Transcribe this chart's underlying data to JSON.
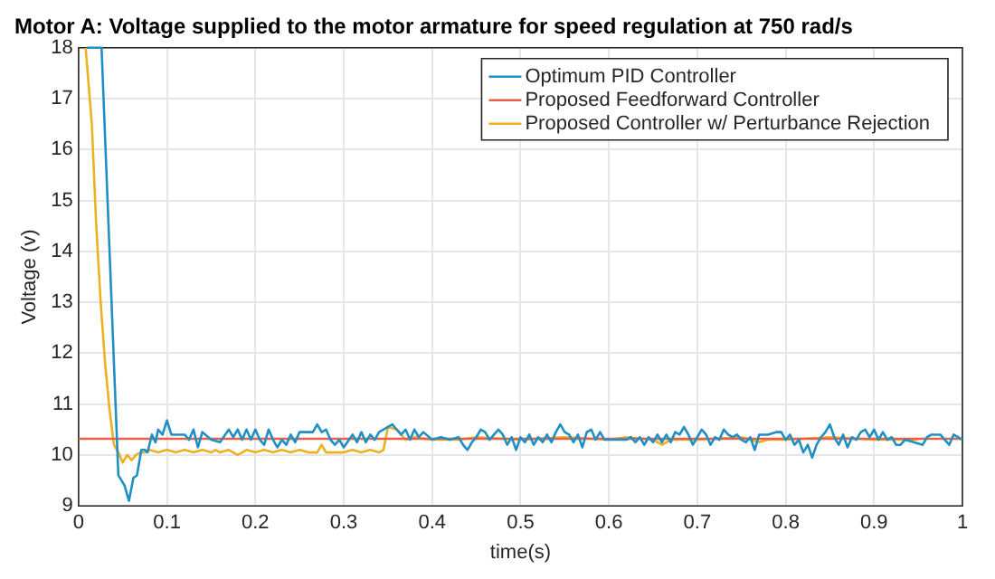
{
  "chart_data": {
    "type": "line",
    "title": "Motor A: Voltage supplied to the motor armature for speed regulation at 750 rad/s",
    "xlabel": "time(s)",
    "ylabel": "Voltage (v)",
    "xlim": [
      0,
      1
    ],
    "xticks": [
      0,
      0.1,
      0.2,
      0.3,
      0.4,
      0.5,
      0.6,
      0.7,
      0.8,
      0.9,
      1
    ],
    "ylim": [
      9,
      18
    ],
    "yticks": [
      9,
      10,
      11,
      12,
      13,
      14,
      15,
      16,
      17,
      18
    ],
    "grid": true,
    "legend": "top right",
    "marker": "none",
    "line_style": "solid",
    "series": [
      {
        "name": "Optimum PID Controller",
        "color": "#1f8fc4",
        "x": [
          0.01,
          0.026,
          0.045,
          0.052,
          0.057,
          0.062,
          0.066,
          0.071,
          0.075,
          0.078,
          0.083,
          0.087,
          0.09,
          0.095,
          0.1,
          0.105,
          0.12,
          0.125,
          0.13,
          0.135,
          0.14,
          0.15,
          0.16,
          0.17,
          0.175,
          0.18,
          0.185,
          0.19,
          0.195,
          0.2,
          0.205,
          0.21,
          0.215,
          0.22,
          0.225,
          0.23,
          0.235,
          0.24,
          0.245,
          0.25,
          0.265,
          0.27,
          0.275,
          0.28,
          0.285,
          0.29,
          0.295,
          0.3,
          0.31,
          0.315,
          0.32,
          0.325,
          0.33,
          0.335,
          0.34,
          0.35,
          0.355,
          0.36,
          0.365,
          0.37,
          0.375,
          0.38,
          0.385,
          0.39,
          0.4,
          0.41,
          0.42,
          0.43,
          0.435,
          0.44,
          0.445,
          0.45,
          0.455,
          0.46,
          0.465,
          0.47,
          0.475,
          0.48,
          0.485,
          0.49,
          0.495,
          0.5,
          0.505,
          0.51,
          0.515,
          0.52,
          0.525,
          0.53,
          0.535,
          0.54,
          0.545,
          0.55,
          0.555,
          0.56,
          0.565,
          0.57,
          0.575,
          0.58,
          0.585,
          0.59,
          0.595,
          0.62,
          0.625,
          0.63,
          0.635,
          0.64,
          0.645,
          0.65,
          0.655,
          0.66,
          0.665,
          0.67,
          0.675,
          0.68,
          0.685,
          0.69,
          0.695,
          0.7,
          0.705,
          0.71,
          0.715,
          0.72,
          0.725,
          0.73,
          0.735,
          0.74,
          0.745,
          0.75,
          0.755,
          0.76,
          0.765,
          0.77,
          0.78,
          0.79,
          0.795,
          0.8,
          0.805,
          0.81,
          0.815,
          0.82,
          0.825,
          0.83,
          0.835,
          0.84,
          0.845,
          0.85,
          0.855,
          0.86,
          0.865,
          0.87,
          0.875,
          0.88,
          0.885,
          0.89,
          0.895,
          0.9,
          0.905,
          0.91,
          0.915,
          0.92,
          0.925,
          0.93,
          0.935,
          0.955,
          0.96,
          0.965,
          0.97,
          0.975,
          0.98,
          0.985,
          0.99,
          0.995,
          1
        ],
        "values": [
          18,
          18,
          9.6,
          9.4,
          9.1,
          9.55,
          9.6,
          10.1,
          10.1,
          10.05,
          10.4,
          10.25,
          10.5,
          10.4,
          10.68,
          10.4,
          10.4,
          10.3,
          10.5,
          10.15,
          10.45,
          10.3,
          10.25,
          10.5,
          10.35,
          10.5,
          10.3,
          10.5,
          10.3,
          10.5,
          10.3,
          10.2,
          10.5,
          10.3,
          10.15,
          10.3,
          10.2,
          10.4,
          10.25,
          10.45,
          10.45,
          10.6,
          10.45,
          10.5,
          10.3,
          10.2,
          10.3,
          10.15,
          10.4,
          10.25,
          10.45,
          10.25,
          10.4,
          10.3,
          10.45,
          10.55,
          10.6,
          10.5,
          10.4,
          10.5,
          10.3,
          10.5,
          10.35,
          10.45,
          10.3,
          10.35,
          10.3,
          10.35,
          10.2,
          10.1,
          10.25,
          10.35,
          10.5,
          10.45,
          10.3,
          10.4,
          10.5,
          10.4,
          10.2,
          10.35,
          10.1,
          10.35,
          10.25,
          10.4,
          10.2,
          10.35,
          10.25,
          10.4,
          10.25,
          10.45,
          10.6,
          10.45,
          10.4,
          10.25,
          10.4,
          10.15,
          10.45,
          10.5,
          10.3,
          10.45,
          10.3,
          10.3,
          10.35,
          10.25,
          10.35,
          10.2,
          10.35,
          10.25,
          10.4,
          10.25,
          10.4,
          10.25,
          10.45,
          10.4,
          10.55,
          10.4,
          10.2,
          10.35,
          10.5,
          10.4,
          10.2,
          10.35,
          10.3,
          10.5,
          10.4,
          10.35,
          10.4,
          10.3,
          10.25,
          10.35,
          10.1,
          10.4,
          10.4,
          10.45,
          10.45,
          10.3,
          10.4,
          10.2,
          10.3,
          10.05,
          10.2,
          9.95,
          10.2,
          10.35,
          10.45,
          10.6,
          10.35,
          10.2,
          10.4,
          10.15,
          10.35,
          10.3,
          10.45,
          10.5,
          10.35,
          10.5,
          10.3,
          10.45,
          10.3,
          10.35,
          10.2,
          10.2,
          10.3,
          10.2,
          10.35,
          10.4,
          10.4,
          10.4,
          10.3,
          10.2,
          10.4,
          10.35,
          10.3
        ]
      },
      {
        "name": "Proposed Feedforward Controller",
        "color": "#e8604a",
        "x": [
          0,
          1
        ],
        "values": [
          10.32,
          10.32
        ]
      },
      {
        "name": "Proposed Controller w/ Perturbance Rejection",
        "color": "#edb120",
        "x": [
          0.008,
          0.015,
          0.02,
          0.025,
          0.03,
          0.035,
          0.04,
          0.045,
          0.05,
          0.055,
          0.06,
          0.065,
          0.07,
          0.075,
          0.08,
          0.09,
          0.1,
          0.11,
          0.12,
          0.13,
          0.14,
          0.15,
          0.155,
          0.16,
          0.17,
          0.18,
          0.19,
          0.2,
          0.21,
          0.22,
          0.23,
          0.24,
          0.25,
          0.26,
          0.27,
          0.275,
          0.28,
          0.29,
          0.3,
          0.31,
          0.32,
          0.33,
          0.34,
          0.345,
          0.35,
          0.36,
          0.37,
          0.38,
          0.4,
          0.43,
          0.45,
          0.5,
          0.55,
          0.6,
          0.62,
          0.65,
          0.66,
          0.67,
          0.7,
          0.75,
          0.77,
          0.78,
          0.8,
          0.85,
          0.9,
          0.95
        ],
        "values": [
          18,
          16.5,
          14.5,
          13,
          11.8,
          10.9,
          10.2,
          10.05,
          9.85,
          10,
          9.9,
          10,
          10.05,
          10.05,
          10.1,
          10.05,
          10.1,
          10.05,
          10.1,
          10.05,
          10.1,
          10.05,
          10.1,
          10.05,
          10.1,
          10,
          10.1,
          10.05,
          10.1,
          10.05,
          10.1,
          10.05,
          10.1,
          10.05,
          10.05,
          10.2,
          10.05,
          10.05,
          10.05,
          10.1,
          10.05,
          10.1,
          10.05,
          10.1,
          10.55,
          10.5,
          10.3,
          10.35,
          10.3,
          10.3,
          10.35,
          10.3,
          10.35,
          10.3,
          10.35,
          10.3,
          10.2,
          10.3,
          10.3,
          10.35,
          10.25,
          10.3,
          10.3,
          10.35,
          10.3,
          10.3
        ]
      }
    ]
  }
}
